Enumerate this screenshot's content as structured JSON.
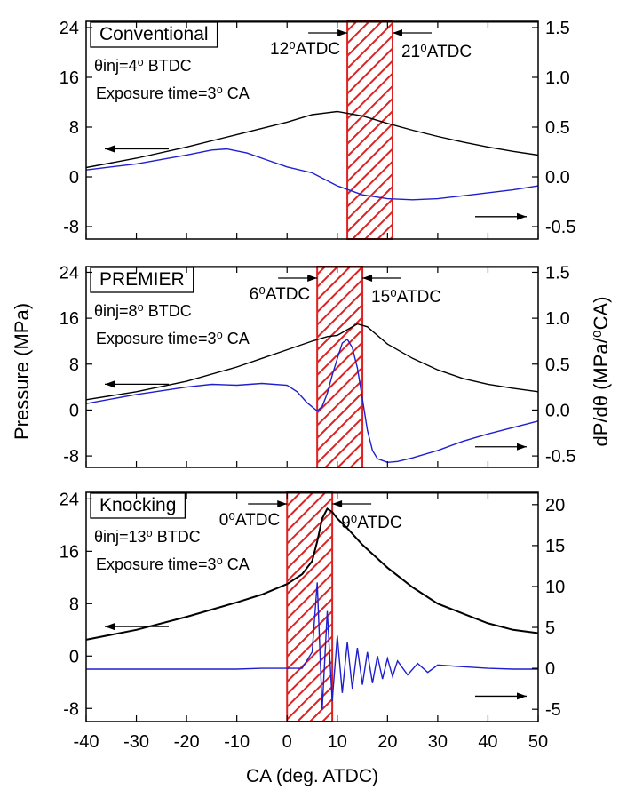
{
  "chart_data": {
    "type": "line",
    "xlabel": "CA (deg. ATDC)",
    "xlim": [
      -40,
      50
    ],
    "x_ticks": [
      -40,
      -30,
      -20,
      -10,
      0,
      10,
      20,
      30,
      40,
      50
    ],
    "ylabel_left": "Pressure (MPa)",
    "ylabel_right": "dP/dθ (MPa/⁰CA)",
    "left_ticks": [
      -8,
      0,
      8,
      16,
      24
    ],
    "colors": {
      "pressure": "#000000",
      "rate": "#1f1fcf",
      "window": "#dd2222",
      "axis": "#000000"
    },
    "panels": [
      {
        "label": "Conventional",
        "ylim_left": [
          -10,
          25
        ],
        "ylim_right": [
          -0.625,
          1.5625
        ],
        "right_ticks": [
          "-0.5",
          "0.0",
          "0.5",
          "1.0",
          "1.5"
        ],
        "right_tick_values": [
          -0.5,
          0.0,
          0.5,
          1.0,
          1.5
        ],
        "inj_text": "θinj=4⁰ BTDC",
        "exposure_text": "Exposure time=3⁰ CA",
        "window": [
          12,
          21
        ],
        "start_label": "12⁰ATDC",
        "end_label": "21⁰ATDC",
        "pressure": {
          "name": "",
          "x": [
            -40,
            -30,
            -20,
            -10,
            0,
            5,
            10,
            15,
            20,
            25,
            30,
            35,
            40,
            45,
            50
          ],
          "y": [
            1.5,
            3,
            4.8,
            6.8,
            8.8,
            10,
            10.5,
            9.8,
            8.6,
            7.5,
            6.5,
            5.6,
            4.8,
            4.1,
            3.5
          ]
        },
        "rate": {
          "name": "",
          "x": [
            -40,
            -30,
            -20,
            -15,
            -12,
            -8,
            -4,
            0,
            5,
            10,
            15,
            20,
            25,
            30,
            35,
            40,
            45,
            50
          ],
          "y": [
            0.07,
            0.13,
            0.22,
            0.27,
            0.28,
            0.24,
            0.17,
            0.1,
            0.04,
            -0.09,
            -0.18,
            -0.22,
            -0.23,
            -0.22,
            -0.19,
            -0.16,
            -0.13,
            -0.09
          ]
        },
        "arrow_left_y": 4.5,
        "arrow_right_y": -0.4
      },
      {
        "label": "PREMIER",
        "ylim_left": [
          -10,
          25
        ],
        "ylim_right": [
          -0.625,
          1.5625
        ],
        "right_ticks": [
          "-0.5",
          "0.0",
          "0.5",
          "1.0",
          "1.5"
        ],
        "right_tick_values": [
          -0.5,
          0.0,
          0.5,
          1.0,
          1.5
        ],
        "inj_text": "θinj=8⁰ BTDC",
        "exposure_text": "Exposure time=3⁰ CA",
        "window": [
          6,
          15
        ],
        "start_label": "6⁰ATDC",
        "end_label": "15⁰ATDC",
        "pressure": {
          "name": "",
          "x": [
            -40,
            -30,
            -20,
            -10,
            -5,
            0,
            5,
            8,
            10,
            12,
            14,
            16,
            18,
            20,
            25,
            30,
            35,
            40,
            45,
            50
          ],
          "y": [
            1.8,
            3.2,
            5,
            7.5,
            9,
            10.5,
            12,
            12.8,
            13,
            14,
            15,
            14.5,
            13,
            11.5,
            9,
            7,
            5.5,
            4.5,
            3.8,
            3.2
          ]
        },
        "rate": {
          "name": "",
          "x": [
            -40,
            -30,
            -20,
            -15,
            -10,
            -5,
            0,
            2,
            4,
            6,
            7,
            8,
            9,
            10,
            11,
            12,
            13,
            14,
            15,
            16,
            17,
            18,
            20,
            22,
            25,
            30,
            35,
            40,
            45,
            50
          ],
          "y": [
            0.07,
            0.17,
            0.25,
            0.28,
            0.27,
            0.29,
            0.27,
            0.2,
            0.08,
            -0.01,
            0.04,
            0.18,
            0.38,
            0.56,
            0.73,
            0.77,
            0.68,
            0.46,
            0.12,
            -0.22,
            -0.44,
            -0.53,
            -0.57,
            -0.56,
            -0.52,
            -0.44,
            -0.34,
            -0.26,
            -0.19,
            -0.12
          ]
        },
        "arrow_left_y": 4.5,
        "arrow_right_y": -0.4
      },
      {
        "label": "Knocking",
        "ylim_left": [
          -10,
          25
        ],
        "ylim_right": [
          -6.5,
          21.5
        ],
        "right_ticks": [
          "-5",
          "0",
          "5",
          "10",
          "15",
          "20"
        ],
        "right_tick_values": [
          -5,
          0,
          5,
          10,
          15,
          20
        ],
        "inj_text": "θinj=13⁰ BTDC",
        "exposure_text": "Exposure time=3⁰ CA",
        "window": [
          0,
          9
        ],
        "start_label": "0⁰ATDC",
        "end_label": "9⁰ATDC",
        "pressure": {
          "name": "",
          "x": [
            -40,
            -30,
            -20,
            -10,
            -5,
            0,
            3,
            5,
            6,
            7,
            8,
            9,
            10,
            12,
            15,
            20,
            25,
            30,
            35,
            40,
            45,
            50
          ],
          "y": [
            2.5,
            4,
            6,
            8.2,
            9.4,
            11,
            12.5,
            14.5,
            17.5,
            21,
            22.5,
            22,
            21,
            19.5,
            17,
            13.5,
            10.5,
            8,
            6.5,
            5,
            4,
            3.5
          ]
        },
        "rate": {
          "name": "",
          "x": [
            -40,
            -30,
            -20,
            -10,
            -5,
            0,
            3,
            5,
            6,
            7,
            8,
            9,
            10,
            11,
            12,
            13,
            14,
            15,
            16,
            17,
            18,
            19,
            20,
            21,
            22,
            24,
            26,
            28,
            30,
            35,
            40,
            45,
            50
          ],
          "y": [
            -0.1,
            -0.1,
            -0.1,
            -0.1,
            0.0,
            0.0,
            0.0,
            2.0,
            10.5,
            -5.0,
            7.0,
            -4.0,
            4.0,
            -3.0,
            3.2,
            -2.5,
            2.5,
            -2.0,
            2.0,
            -1.8,
            1.5,
            -1.3,
            1.2,
            -1.0,
            0.9,
            -0.8,
            0.6,
            -0.5,
            0.4,
            0.2,
            0.0,
            -0.1,
            -0.1
          ]
        },
        "arrow_left_y": 4.5,
        "arrow_right_y": -3.4
      }
    ]
  }
}
